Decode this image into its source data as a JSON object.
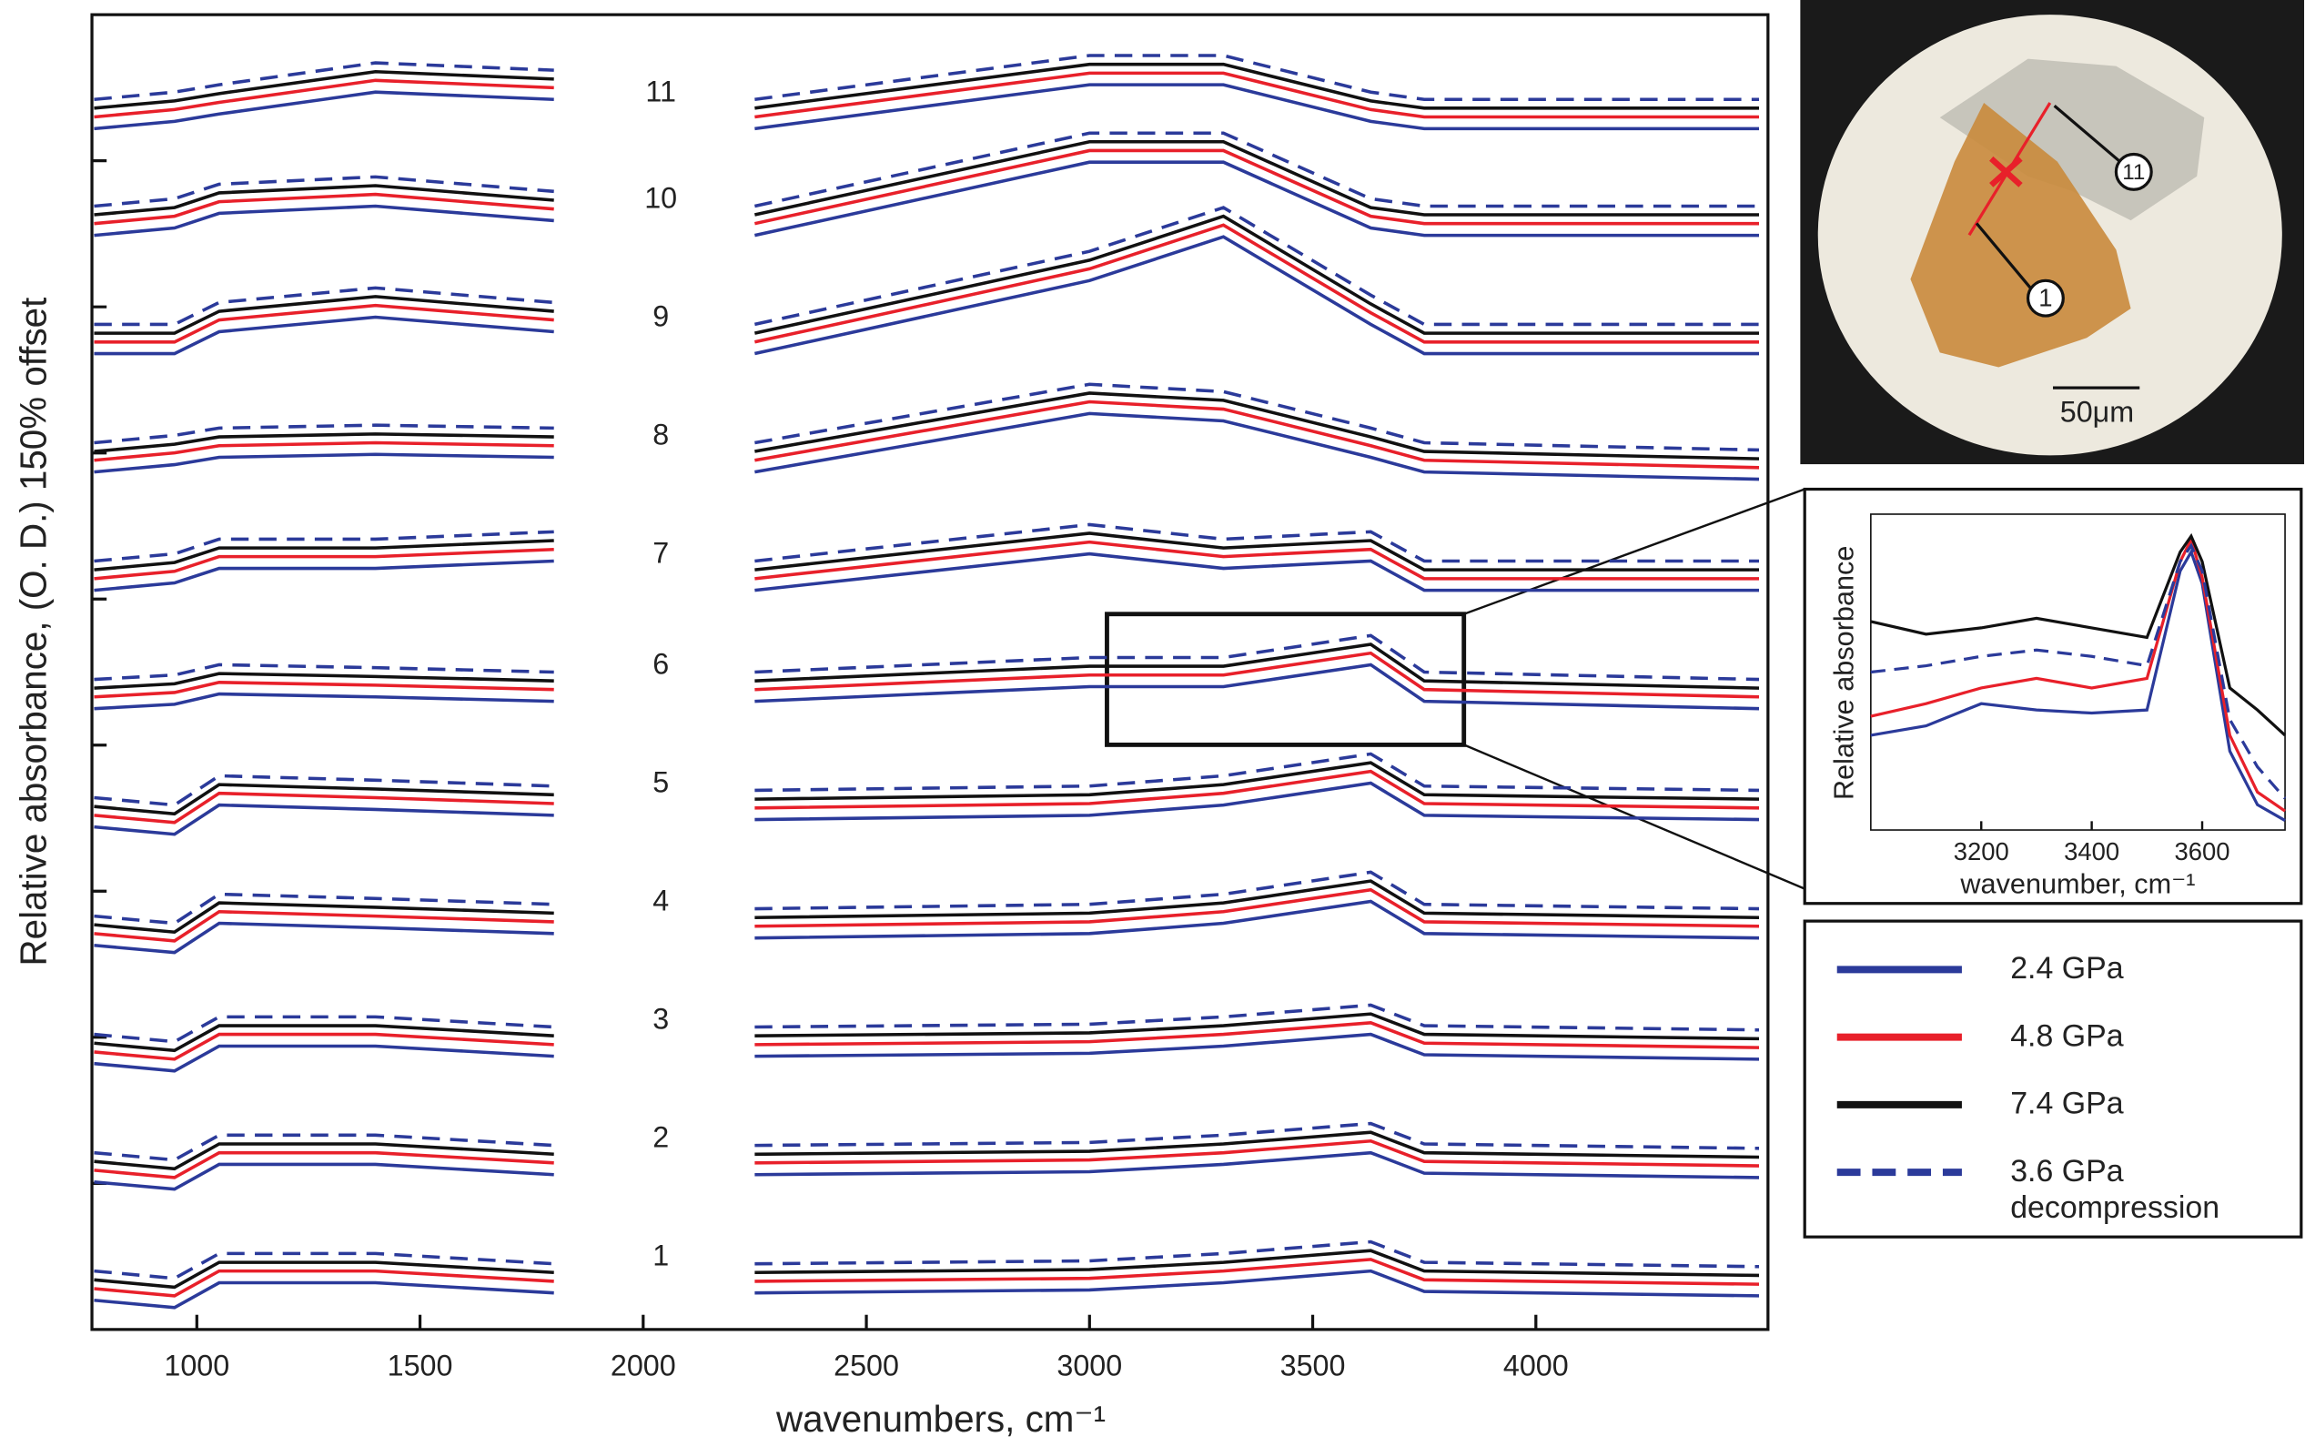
{
  "chart_data": {
    "type": "line",
    "xlabel": "wavenumbers, cm⁻¹",
    "ylabel": "Relative absorbance, (O. D.) 150% offset",
    "xlim": [
      765,
      4520
    ],
    "ylim": [
      0,
      9
    ],
    "xticks": [
      1000,
      1500,
      2000,
      2500,
      3000,
      3500,
      4000
    ],
    "yticks": [
      1,
      2,
      3,
      4,
      5,
      6,
      7,
      8
    ],
    "x": [
      770,
      950,
      1050,
      1400,
      1800,
      2000,
      2250,
      3000,
      3300,
      3630,
      3750,
      4500
    ],
    "spot_labels": [
      "1",
      "2",
      "3",
      "4",
      "5",
      "6",
      "7",
      "8",
      "9",
      "10",
      "11"
    ],
    "series": [
      {
        "name": "2.4 GPa",
        "color": "#2b3a9a",
        "dashed": false,
        "traces": [
          [
            0.2,
            0.15,
            0.32,
            0.32,
            0.25,
            null,
            0.25,
            0.27,
            0.32,
            0.4,
            0.26,
            0.23
          ],
          [
            1.01,
            0.96,
            1.13,
            1.13,
            1.06,
            null,
            1.06,
            1.08,
            1.13,
            1.21,
            1.07,
            1.04
          ],
          [
            1.82,
            1.77,
            1.94,
            1.94,
            1.87,
            null,
            1.87,
            1.89,
            1.94,
            2.02,
            1.88,
            1.85
          ],
          [
            2.63,
            2.58,
            2.78,
            2.75,
            2.71,
            null,
            2.68,
            2.71,
            2.78,
            2.93,
            2.71,
            2.68
          ],
          [
            3.44,
            3.39,
            3.59,
            3.56,
            3.52,
            null,
            3.49,
            3.52,
            3.59,
            3.74,
            3.52,
            3.49
          ],
          [
            4.25,
            4.28,
            4.35,
            4.33,
            4.3,
            null,
            4.3,
            4.4,
            4.4,
            4.55,
            4.3,
            4.25
          ],
          [
            5.06,
            5.11,
            5.21,
            5.21,
            5.26,
            null,
            5.06,
            5.31,
            5.21,
            5.26,
            5.06,
            5.06
          ],
          [
            5.87,
            5.92,
            5.97,
            5.99,
            5.97,
            null,
            5.87,
            6.27,
            6.22,
            5.97,
            5.87,
            5.82
          ],
          [
            6.68,
            6.68,
            6.83,
            6.93,
            6.83,
            null,
            6.68,
            7.18,
            7.48,
            6.88,
            6.68,
            6.68
          ],
          [
            7.49,
            7.54,
            7.64,
            7.69,
            7.59,
            null,
            7.49,
            7.99,
            7.99,
            7.54,
            7.49,
            7.49
          ],
          [
            8.22,
            8.27,
            8.32,
            8.47,
            8.42,
            null,
            8.22,
            8.52,
            8.52,
            8.27,
            8.22,
            8.22
          ]
        ]
      },
      {
        "name": "4.8 GPa",
        "color": "#e8202a",
        "dashed": false,
        "traces": [
          [
            0.28,
            0.23,
            0.4,
            0.4,
            0.33,
            null,
            0.33,
            0.35,
            0.4,
            0.48,
            0.34,
            0.31
          ],
          [
            1.09,
            1.04,
            1.21,
            1.21,
            1.14,
            null,
            1.14,
            1.16,
            1.21,
            1.29,
            1.15,
            1.12
          ],
          [
            1.9,
            1.85,
            2.02,
            2.02,
            1.95,
            null,
            1.95,
            1.97,
            2.02,
            2.1,
            1.96,
            1.93
          ],
          [
            2.71,
            2.66,
            2.86,
            2.83,
            2.79,
            null,
            2.76,
            2.79,
            2.86,
            3.01,
            2.79,
            2.76
          ],
          [
            3.52,
            3.47,
            3.67,
            3.64,
            3.6,
            null,
            3.57,
            3.6,
            3.67,
            3.82,
            3.6,
            3.57
          ],
          [
            4.33,
            4.36,
            4.43,
            4.41,
            4.38,
            null,
            4.38,
            4.48,
            4.48,
            4.63,
            4.38,
            4.33
          ],
          [
            5.14,
            5.19,
            5.29,
            5.29,
            5.34,
            null,
            5.14,
            5.39,
            5.29,
            5.34,
            5.14,
            5.14
          ],
          [
            5.95,
            6.0,
            6.05,
            6.07,
            6.05,
            null,
            5.95,
            6.35,
            6.3,
            6.05,
            5.95,
            5.9
          ],
          [
            6.76,
            6.76,
            6.91,
            7.01,
            6.91,
            null,
            6.76,
            7.26,
            7.56,
            6.96,
            6.76,
            6.76
          ],
          [
            7.57,
            7.62,
            7.72,
            7.77,
            7.67,
            null,
            7.57,
            8.07,
            8.07,
            7.62,
            7.57,
            7.57
          ],
          [
            8.3,
            8.35,
            8.4,
            8.55,
            8.5,
            null,
            8.3,
            8.6,
            8.6,
            8.35,
            8.3,
            8.3
          ]
        ]
      },
      {
        "name": "7.4 GPa",
        "color": "#111111",
        "dashed": false,
        "traces": [
          [
            0.34,
            0.29,
            0.46,
            0.46,
            0.39,
            null,
            0.39,
            0.41,
            0.46,
            0.54,
            0.4,
            0.37
          ],
          [
            1.15,
            1.1,
            1.27,
            1.27,
            1.2,
            null,
            1.2,
            1.22,
            1.27,
            1.35,
            1.21,
            1.18
          ],
          [
            1.96,
            1.91,
            2.08,
            2.08,
            2.01,
            null,
            2.01,
            2.03,
            2.08,
            2.16,
            2.02,
            1.99
          ],
          [
            2.77,
            2.72,
            2.92,
            2.89,
            2.85,
            null,
            2.82,
            2.85,
            2.92,
            3.07,
            2.85,
            2.82
          ],
          [
            3.58,
            3.53,
            3.73,
            3.7,
            3.66,
            null,
            3.63,
            3.66,
            3.73,
            3.88,
            3.66,
            3.63
          ],
          [
            4.39,
            4.42,
            4.49,
            4.47,
            4.44,
            null,
            4.44,
            4.54,
            4.54,
            4.69,
            4.44,
            4.39
          ],
          [
            5.2,
            5.25,
            5.35,
            5.35,
            5.4,
            null,
            5.2,
            5.45,
            5.35,
            5.4,
            5.2,
            5.2
          ],
          [
            6.01,
            6.06,
            6.11,
            6.13,
            6.11,
            null,
            6.01,
            6.41,
            6.36,
            6.11,
            6.01,
            5.96
          ],
          [
            6.82,
            6.82,
            6.97,
            7.07,
            6.97,
            null,
            6.82,
            7.32,
            7.62,
            7.02,
            6.82,
            6.82
          ],
          [
            7.63,
            7.68,
            7.78,
            7.83,
            7.73,
            null,
            7.63,
            8.13,
            8.13,
            7.68,
            7.63,
            7.63
          ],
          [
            8.36,
            8.41,
            8.46,
            8.61,
            8.56,
            null,
            8.36,
            8.66,
            8.66,
            8.41,
            8.36,
            8.36
          ]
        ]
      },
      {
        "name": "3.6 GPa decompression",
        "color": "#2b3a9a",
        "dashed": true,
        "traces": [
          [
            0.4,
            0.35,
            0.52,
            0.52,
            0.45,
            null,
            0.45,
            0.47,
            0.52,
            0.6,
            0.46,
            0.43
          ],
          [
            1.21,
            1.16,
            1.33,
            1.33,
            1.26,
            null,
            1.26,
            1.28,
            1.33,
            1.41,
            1.27,
            1.24
          ],
          [
            2.02,
            1.97,
            2.14,
            2.14,
            2.07,
            null,
            2.07,
            2.09,
            2.14,
            2.22,
            2.08,
            2.05
          ],
          [
            2.83,
            2.78,
            2.98,
            2.95,
            2.91,
            null,
            2.88,
            2.91,
            2.98,
            3.13,
            2.91,
            2.88
          ],
          [
            3.64,
            3.59,
            3.79,
            3.76,
            3.72,
            null,
            3.69,
            3.72,
            3.79,
            3.94,
            3.72,
            3.69
          ],
          [
            4.45,
            4.48,
            4.55,
            4.53,
            4.5,
            null,
            4.5,
            4.6,
            4.6,
            4.75,
            4.5,
            4.45
          ],
          [
            5.26,
            5.31,
            5.41,
            5.41,
            5.46,
            null,
            5.26,
            5.51,
            5.41,
            5.46,
            5.26,
            5.26
          ],
          [
            6.07,
            6.12,
            6.17,
            6.19,
            6.17,
            null,
            6.07,
            6.47,
            6.42,
            6.17,
            6.07,
            6.02
          ],
          [
            6.88,
            6.88,
            7.03,
            7.13,
            7.03,
            null,
            6.88,
            7.38,
            7.68,
            7.08,
            6.88,
            6.88
          ],
          [
            7.69,
            7.74,
            7.84,
            7.89,
            7.79,
            null,
            7.69,
            8.19,
            8.19,
            7.74,
            7.69,
            7.69
          ],
          [
            8.42,
            8.47,
            8.52,
            8.67,
            8.62,
            null,
            8.42,
            8.72,
            8.72,
            8.47,
            8.42,
            8.42
          ]
        ]
      }
    ],
    "inset": {
      "xlabel": "wavenumber, cm⁻¹",
      "ylabel": "Relative absorbance",
      "xlim": [
        3000,
        3750
      ],
      "ylim": [
        0,
        1
      ],
      "xticks": [
        3200,
        3400,
        3600
      ],
      "x": [
        3000,
        3100,
        3200,
        3300,
        3400,
        3500,
        3560,
        3580,
        3600,
        3650,
        3700,
        3750
      ],
      "series": [
        {
          "values": [
            0.3,
            0.33,
            0.4,
            0.38,
            0.37,
            0.38,
            0.82,
            0.88,
            0.78,
            0.25,
            0.08,
            0.03
          ]
        },
        {
          "values": [
            0.36,
            0.4,
            0.45,
            0.48,
            0.45,
            0.48,
            0.85,
            0.92,
            0.8,
            0.3,
            0.12,
            0.06
          ]
        },
        {
          "values": [
            0.66,
            0.62,
            0.64,
            0.67,
            0.64,
            0.61,
            0.88,
            0.93,
            0.85,
            0.45,
            0.38,
            0.3
          ]
        },
        {
          "values": [
            0.5,
            0.52,
            0.55,
            0.57,
            0.55,
            0.52,
            0.85,
            0.9,
            0.82,
            0.35,
            0.2,
            0.1
          ]
        }
      ]
    },
    "photo": {
      "scale_bar": "50μm",
      "markers": [
        "1",
        "11"
      ]
    }
  }
}
